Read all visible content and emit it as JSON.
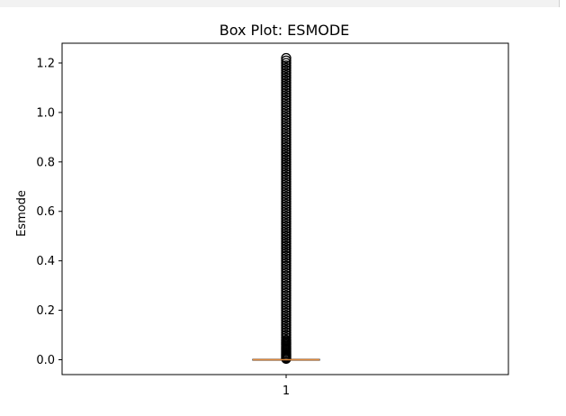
{
  "chart_data": {
    "type": "box",
    "title": "Box Plot: ESMODE",
    "xlabel": "",
    "ylabel": "Esmode",
    "categories": [
      "1"
    ],
    "ylim": [
      -0.06,
      1.28
    ],
    "yticks": [
      "0.0",
      "0.2",
      "0.4",
      "0.6",
      "0.8",
      "1.0",
      "1.2"
    ],
    "box": {
      "q1": 0.0,
      "median": 0.0,
      "q3": 0.0,
      "whisker_low": 0.0,
      "whisker_high": 0.0
    },
    "outliers": [
      0.004,
      0.008,
      0.012,
      0.016,
      0.02,
      0.025,
      0.03,
      0.035,
      0.04,
      0.045,
      0.05,
      0.055,
      0.06,
      0.065,
      0.07,
      0.075,
      0.08,
      0.09,
      0.1,
      0.11,
      0.12,
      0.13,
      0.14,
      0.15,
      0.16,
      0.17,
      0.18,
      0.19,
      0.2,
      0.21,
      0.22,
      0.23,
      0.24,
      0.25,
      0.26,
      0.27,
      0.28,
      0.29,
      0.3,
      0.31,
      0.32,
      0.33,
      0.34,
      0.35,
      0.36,
      0.37,
      0.38,
      0.39,
      0.4,
      0.41,
      0.42,
      0.43,
      0.44,
      0.45,
      0.46,
      0.47,
      0.48,
      0.49,
      0.5,
      0.51,
      0.52,
      0.53,
      0.54,
      0.55,
      0.56,
      0.57,
      0.58,
      0.59,
      0.6,
      0.61,
      0.62,
      0.63,
      0.64,
      0.65,
      0.66,
      0.67,
      0.68,
      0.69,
      0.7,
      0.71,
      0.72,
      0.73,
      0.74,
      0.75,
      0.76,
      0.77,
      0.78,
      0.79,
      0.8,
      0.81,
      0.82,
      0.83,
      0.84,
      0.85,
      0.86,
      0.87,
      0.88,
      0.89,
      0.9,
      0.91,
      0.92,
      0.93,
      0.94,
      0.95,
      0.96,
      0.97,
      0.98,
      0.99,
      1.0,
      1.01,
      1.02,
      1.03,
      1.04,
      1.05,
      1.06,
      1.07,
      1.08,
      1.09,
      1.1,
      1.11,
      1.12,
      1.13,
      1.14,
      1.15,
      1.16,
      1.17,
      1.18,
      1.19,
      1.2,
      1.21,
      1.22
    ],
    "colors": {
      "median": "#e08a3c",
      "outlier_edge": "#000000",
      "frame": "#000000"
    },
    "grid": false
  }
}
